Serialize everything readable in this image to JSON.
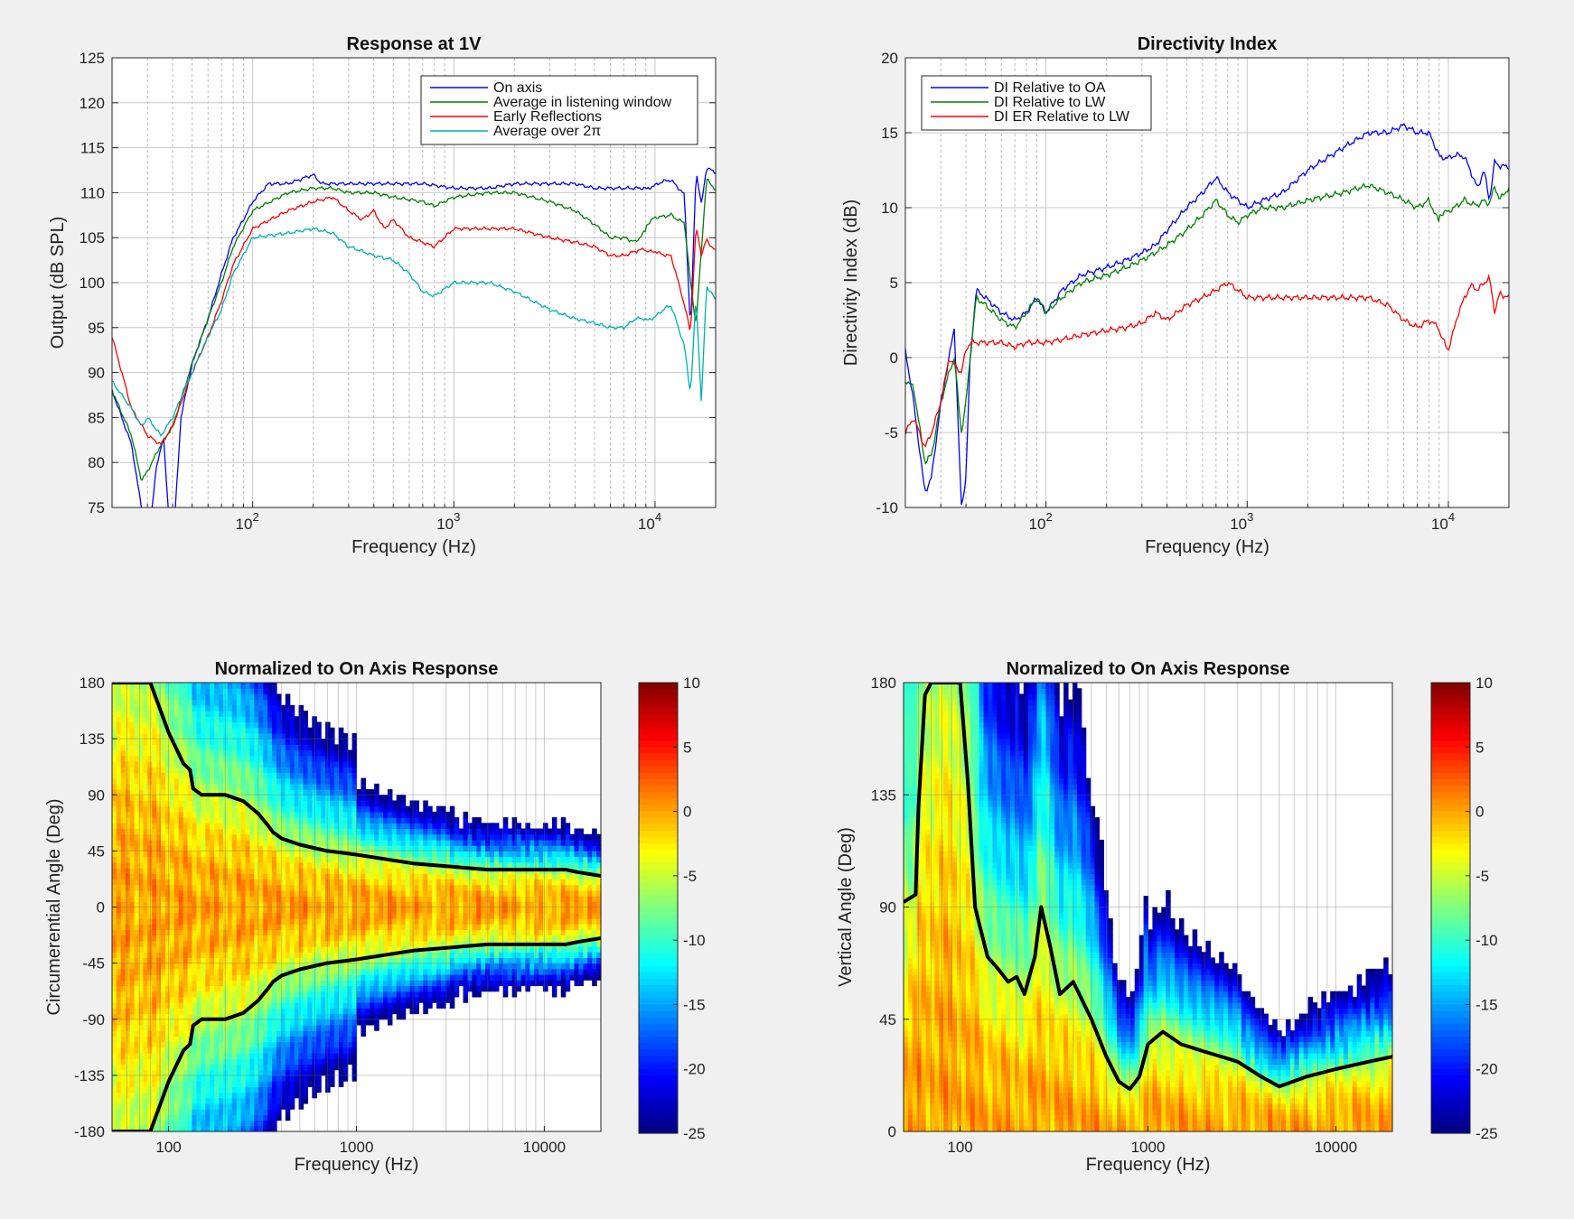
{
  "chart_data": [
    {
      "type": "line",
      "title": "Response at 1V",
      "xlabel": "Frequency (Hz)",
      "ylabel": "Output (dB SPL)",
      "xscale": "log",
      "xlim": [
        20,
        20000
      ],
      "ylim": [
        75,
        125
      ],
      "xticks": [
        100,
        1000,
        10000
      ],
      "xtick_labels": [
        {
          "base": "10",
          "exp": "2"
        },
        {
          "base": "10",
          "exp": "3"
        },
        {
          "base": "10",
          "exp": "4"
        }
      ],
      "yticks": [
        75,
        80,
        85,
        90,
        95,
        100,
        105,
        110,
        115,
        120,
        125
      ],
      "grid": true,
      "legend_position": "top-right",
      "series": [
        {
          "name": "On axis",
          "color": "#0000ff",
          "x": [
            20,
            25,
            28,
            30,
            33,
            36,
            38,
            40,
            44,
            50,
            60,
            70,
            80,
            90,
            100,
            120,
            150,
            200,
            220,
            250,
            300,
            400,
            500,
            700,
            1000,
            1500,
            2000,
            3000,
            4000,
            5000,
            7000,
            10000,
            12000,
            14000,
            15000,
            16000,
            17000,
            18000,
            20000
          ],
          "y": [
            88,
            82,
            75,
            70,
            79,
            83,
            75,
            70,
            85,
            91,
            96,
            101,
            105,
            107,
            109,
            111,
            111,
            112,
            111,
            111,
            111,
            111,
            111,
            111,
            110.5,
            110.5,
            111,
            111,
            111,
            110.5,
            110.5,
            110.5,
            111,
            110,
            95,
            113,
            109,
            113,
            112
          ]
        },
        {
          "name": "Average in listening window",
          "color": "#008000",
          "x": [
            20,
            25,
            28,
            30,
            35,
            40,
            50,
            60,
            70,
            80,
            100,
            150,
            200,
            250,
            300,
            400,
            500,
            700,
            800,
            1000,
            1500,
            2000,
            3000,
            4000,
            5000,
            6000,
            7000,
            8000,
            10000,
            12000,
            14000,
            15000,
            16000,
            18000,
            20000
          ],
          "y": [
            88,
            83,
            78,
            79,
            82,
            84,
            91,
            96,
            100,
            104,
            108,
            110,
            110.5,
            110.5,
            110,
            110,
            109.5,
            109,
            108.5,
            109.5,
            110,
            110,
            109,
            108,
            106.5,
            105,
            105,
            104.5,
            107,
            108,
            107,
            100,
            95,
            111,
            110
          ]
        },
        {
          "name": "Early Reflections",
          "color": "#ff0000",
          "x": [
            20,
            25,
            30,
            35,
            40,
            50,
            60,
            70,
            80,
            100,
            150,
            200,
            250,
            300,
            350,
            400,
            450,
            500,
            600,
            700,
            800,
            1000,
            1500,
            2000,
            3000,
            4000,
            5000,
            6000,
            7000,
            8000,
            10000,
            12000,
            14000,
            15000,
            16000,
            17000,
            18000,
            20000
          ],
          "y": [
            94,
            86,
            83,
            82,
            84,
            90,
            94,
            98,
            102,
            106,
            108,
            109,
            109.5,
            108,
            107,
            108,
            106,
            107,
            105,
            104.5,
            104,
            106,
            106,
            106,
            105,
            104.5,
            104,
            103,
            103,
            103.5,
            104,
            103,
            97,
            94,
            106,
            103,
            105,
            104
          ]
        },
        {
          "name": "Average over 2π",
          "color": "#00b0b0",
          "x": [
            20,
            25,
            28,
            30,
            35,
            40,
            50,
            60,
            70,
            80,
            100,
            150,
            200,
            250,
            300,
            350,
            400,
            500,
            600,
            700,
            800,
            1000,
            1500,
            2000,
            3000,
            4000,
            5000,
            6000,
            7000,
            8000,
            10000,
            12000,
            14000,
            15000,
            16000,
            17000,
            18000,
            20000
          ],
          "y": [
            89,
            86,
            84,
            85,
            83,
            85,
            90,
            94,
            97,
            101,
            105,
            105.5,
            106,
            105.5,
            104,
            103.5,
            103,
            102.5,
            101,
            99,
            98.5,
            100,
            100,
            99,
            97,
            96,
            95.5,
            95,
            95,
            96,
            96,
            97,
            93,
            88,
            99,
            87,
            100,
            98
          ]
        }
      ]
    },
    {
      "type": "line",
      "title": "Directivity Index",
      "xlabel": "Frequency (Hz)",
      "ylabel": "Directivity Index (dB)",
      "xscale": "log",
      "xlim": [
        20,
        20000
      ],
      "ylim": [
        -10,
        20
      ],
      "xticks": [
        100,
        1000,
        10000
      ],
      "xtick_labels": [
        {
          "base": "10",
          "exp": "2"
        },
        {
          "base": "10",
          "exp": "3"
        },
        {
          "base": "10",
          "exp": "4"
        }
      ],
      "yticks": [
        -10,
        -5,
        0,
        5,
        10,
        15,
        20
      ],
      "grid": true,
      "legend_position": "top-left",
      "series": [
        {
          "name": "DI Relative to OA",
          "color": "#0000ff",
          "x": [
            20,
            22,
            25,
            27,
            30,
            33,
            35,
            38,
            40,
            42,
            45,
            50,
            60,
            70,
            80,
            90,
            100,
            120,
            150,
            200,
            250,
            300,
            350,
            400,
            500,
            600,
            700,
            750,
            800,
            900,
            1000,
            1200,
            1500,
            2000,
            3000,
            4000,
            5000,
            6000,
            7000,
            8000,
            9000,
            10000,
            12000,
            14000,
            15000,
            16000,
            17000,
            18000,
            20000
          ],
          "y": [
            0.5,
            -3,
            -9,
            -8,
            -3,
            0,
            2,
            -10,
            -8,
            0,
            4.5,
            4,
            3,
            2.5,
            3,
            4,
            3,
            4.5,
            5.5,
            6,
            6.5,
            7,
            7.5,
            8.5,
            10,
            11,
            12,
            11.5,
            11,
            10.5,
            10,
            10.5,
            11,
            12.5,
            14,
            15,
            15,
            15.5,
            15,
            15,
            13.5,
            13,
            13,
            11.5,
            13,
            11,
            13.5,
            13,
            12.5
          ]
        },
        {
          "name": "DI Relative to LW",
          "color": "#008000",
          "x": [
            20,
            22,
            25,
            27,
            30,
            33,
            35,
            38,
            40,
            42,
            45,
            50,
            60,
            70,
            80,
            90,
            100,
            120,
            150,
            200,
            250,
            300,
            350,
            400,
            500,
            600,
            700,
            750,
            800,
            900,
            1000,
            1200,
            1500,
            2000,
            3000,
            4000,
            5000,
            6000,
            7000,
            8000,
            9000,
            10000,
            12000,
            14000,
            15000,
            16000,
            17000,
            18000,
            20000
          ],
          "y": [
            -1.5,
            -2,
            -7,
            -6.5,
            -3,
            -1,
            0,
            -5,
            -3,
            0,
            4,
            3.5,
            2.5,
            2,
            3,
            4,
            3,
            4,
            5,
            5.5,
            6,
            6.5,
            7,
            7.5,
            8.5,
            9.5,
            10.5,
            10,
            9.5,
            9,
            9.5,
            10,
            10,
            10.5,
            11,
            11.5,
            11,
            10.5,
            10,
            10.5,
            9,
            9.5,
            11,
            10.5,
            10.5,
            10,
            11,
            10,
            11
          ]
        },
        {
          "name": "DI ER Relative to LW",
          "color": "#ff0000",
          "x": [
            20,
            22,
            25,
            27,
            30,
            33,
            35,
            38,
            40,
            42,
            45,
            50,
            60,
            70,
            80,
            90,
            100,
            120,
            150,
            200,
            250,
            300,
            350,
            400,
            500,
            600,
            700,
            800,
            900,
            1000,
            1500,
            2000,
            3000,
            4000,
            5000,
            6000,
            7000,
            8000,
            9000,
            10000,
            11000,
            12000,
            13000,
            14000,
            15000,
            16000,
            17000,
            18000,
            20000
          ],
          "y": [
            -5,
            -4,
            -6,
            -5,
            -3,
            0,
            -0.5,
            -1,
            0.5,
            1,
            1,
            1,
            1,
            0.7,
            1,
            1,
            1,
            1.2,
            1.5,
            1.8,
            2,
            2.3,
            3,
            2.5,
            3.5,
            4,
            4.5,
            5,
            4.5,
            4,
            4,
            4,
            4,
            4,
            3.5,
            2.5,
            2,
            2.5,
            2,
            1,
            3,
            4,
            4.5,
            4,
            4.5,
            5,
            3,
            4.5,
            4.5
          ]
        }
      ]
    },
    {
      "type": "heatmap",
      "title": "Normalized to On Axis Response",
      "xlabel": "Frequency (Hz)",
      "ylabel": "Circumerential Angle (Deg)",
      "xscale": "log",
      "xlim": [
        50,
        20000
      ],
      "ylim": [
        -180,
        180
      ],
      "xticks": [
        100,
        1000,
        10000
      ],
      "xtick_labels": [
        "100",
        "1000",
        "10000"
      ],
      "yticks": [
        -180,
        -135,
        -90,
        -45,
        0,
        45,
        90,
        135,
        180
      ],
      "ytick_labels": [
        "-180",
        "-135",
        "-90",
        "-45",
        "0",
        "45",
        "90",
        "135",
        "180"
      ],
      "colorbar": {
        "min": -25,
        "max": 10,
        "ticks": [
          "10",
          "5",
          "0",
          "-5",
          "-10",
          "-15",
          "-20",
          "-25"
        ],
        "colormap": "jet"
      },
      "contour_level_db": -6,
      "contour_upper": {
        "x": [
          50,
          80,
          100,
          120,
          130,
          135,
          150,
          200,
          250,
          300,
          340,
          360,
          400,
          500,
          700,
          1000,
          2000,
          5000,
          10000,
          13000,
          15000,
          20000
        ],
        "y": [
          180,
          180,
          140,
          115,
          110,
          95,
          90,
          90,
          85,
          75,
          65,
          60,
          55,
          50,
          45,
          42,
          35,
          30,
          30,
          30,
          28,
          25
        ]
      }
    },
    {
      "type": "heatmap",
      "title": "Normalized to On Axis Response",
      "xlabel": "Frequency (Hz)",
      "ylabel": "Vertical Angle (Deg)",
      "xscale": "log",
      "xlim": [
        50,
        20000
      ],
      "ylim": [
        0,
        180
      ],
      "xticks": [
        100,
        1000,
        10000
      ],
      "xtick_labels": [
        "100",
        "1000",
        "10000"
      ],
      "yticks": [
        0,
        45,
        90,
        135,
        180
      ],
      "ytick_labels": [
        "0",
        "45",
        "90",
        "135",
        "180"
      ],
      "colorbar": {
        "min": -25,
        "max": 10,
        "ticks": [
          "10",
          "5",
          "0",
          "-5",
          "-10",
          "-15",
          "-20",
          "-25"
        ],
        "colormap": "jet"
      },
      "contour_level_db": -6,
      "contour": {
        "x": [
          50,
          58,
          60,
          65,
          70,
          90,
          100,
          110,
          120,
          140,
          160,
          180,
          200,
          220,
          250,
          270,
          300,
          340,
          400,
          500,
          600,
          700,
          800,
          900,
          1000,
          1200,
          1500,
          2000,
          3000,
          4000,
          5000,
          7000,
          10000,
          15000,
          20000
        ],
        "y": [
          92,
          95,
          130,
          175,
          180,
          180,
          180,
          140,
          90,
          70,
          65,
          60,
          62,
          55,
          70,
          90,
          75,
          55,
          60,
          45,
          30,
          20,
          17,
          22,
          35,
          40,
          35,
          32,
          28,
          22,
          18,
          22,
          25,
          28,
          30
        ]
      }
    }
  ]
}
